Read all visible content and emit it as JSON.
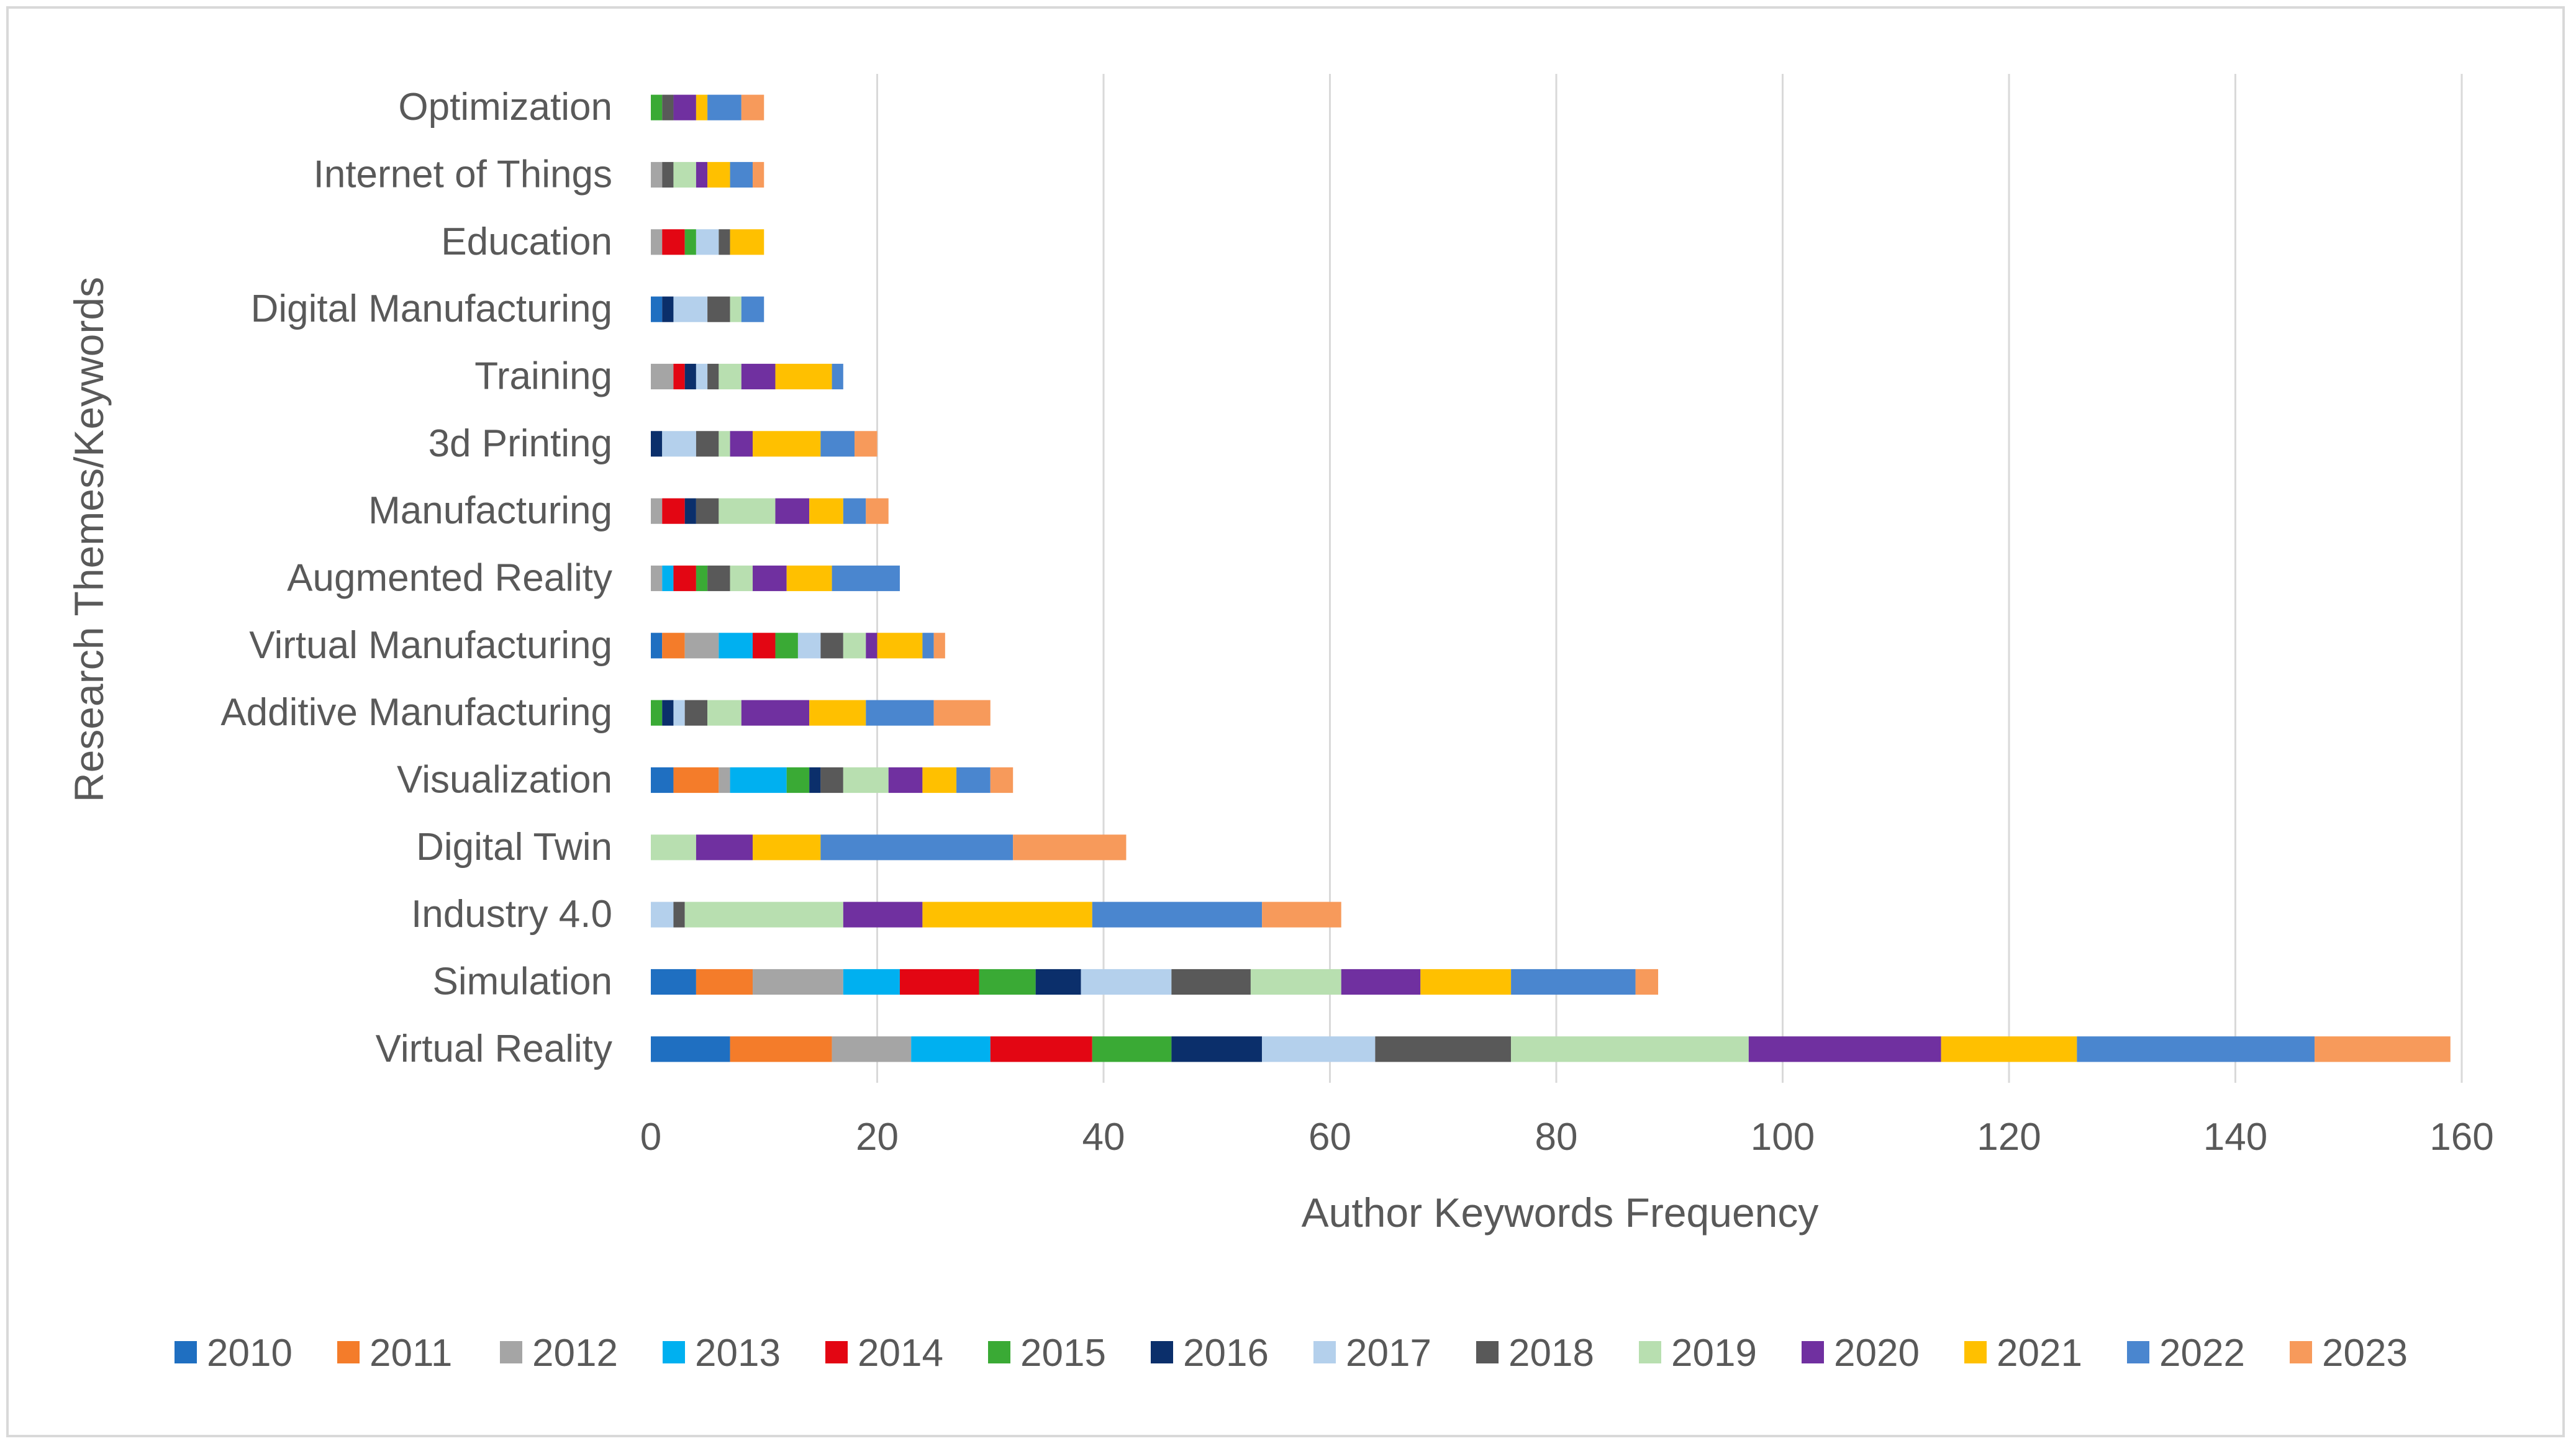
{
  "chart_data": {
    "type": "bar",
    "orientation": "horizontal",
    "stacked": true,
    "title": "",
    "xlabel": "Author Keywords Frequency",
    "ylabel": "Research Themes/Keywords",
    "xlim": [
      0,
      160
    ],
    "xticks": [
      0,
      20,
      40,
      60,
      80,
      100,
      120,
      140,
      160
    ],
    "grid": "vertical",
    "legend_position": "bottom",
    "categories": [
      "Virtual Reality",
      "Simulation",
      "Industry 4.0",
      "Digital Twin",
      "Visualization",
      "Additive Manufacturing",
      "Virtual Manufacturing",
      "Augmented Reality",
      "Manufacturing",
      "3d Printing",
      "Training",
      "Digital Manufacturing",
      "Education",
      "Internet of Things",
      "Optimization"
    ],
    "series": [
      {
        "name": "2010",
        "color": "#1f6fc1",
        "values": [
          7,
          4,
          0,
          0,
          2,
          0,
          1,
          0,
          0,
          0,
          0,
          1,
          0,
          0,
          0
        ]
      },
      {
        "name": "2011",
        "color": "#f47c2a",
        "values": [
          9,
          5,
          0,
          0,
          4,
          0,
          2,
          0,
          0,
          0,
          0,
          0,
          0,
          0,
          0
        ]
      },
      {
        "name": "2012",
        "color": "#a5a5a5",
        "values": [
          7,
          8,
          0,
          0,
          1,
          0,
          3,
          1,
          1,
          0,
          2,
          0,
          1,
          1,
          0
        ]
      },
      {
        "name": "2013",
        "color": "#00b0f0",
        "values": [
          7,
          5,
          0,
          0,
          5,
          0,
          3,
          1,
          0,
          0,
          0,
          0,
          0,
          0,
          0
        ]
      },
      {
        "name": "2014",
        "color": "#e30613",
        "values": [
          9,
          7,
          0,
          0,
          0,
          0,
          2,
          2,
          2,
          0,
          1,
          0,
          2,
          0,
          0
        ]
      },
      {
        "name": "2015",
        "color": "#3aaa35",
        "values": [
          7,
          5,
          0,
          0,
          2,
          1,
          2,
          1,
          0,
          0,
          0,
          0,
          1,
          0,
          1
        ]
      },
      {
        "name": "2016",
        "color": "#0b2f6b",
        "values": [
          8,
          4,
          0,
          0,
          1,
          1,
          0,
          0,
          1,
          1,
          1,
          1,
          0,
          0,
          0
        ]
      },
      {
        "name": "2017",
        "color": "#b4d0ec",
        "values": [
          10,
          8,
          2,
          0,
          0,
          1,
          2,
          0,
          0,
          3,
          1,
          3,
          2,
          0,
          0
        ]
      },
      {
        "name": "2018",
        "color": "#595959",
        "values": [
          12,
          7,
          1,
          0,
          2,
          2,
          2,
          2,
          2,
          2,
          1,
          2,
          1,
          1,
          1
        ]
      },
      {
        "name": "2019",
        "color": "#b8dfb0",
        "values": [
          21,
          8,
          14,
          4,
          4,
          3,
          2,
          2,
          5,
          1,
          2,
          1,
          0,
          2,
          0
        ]
      },
      {
        "name": "2020",
        "color": "#7030a0",
        "values": [
          17,
          7,
          7,
          5,
          3,
          6,
          1,
          3,
          3,
          2,
          3,
          0,
          0,
          1,
          2
        ]
      },
      {
        "name": "2021",
        "color": "#ffc000",
        "values": [
          12,
          8,
          15,
          6,
          3,
          5,
          4,
          4,
          3,
          6,
          5,
          0,
          3,
          2,
          1
        ]
      },
      {
        "name": "2022",
        "color": "#4a86cf",
        "values": [
          21,
          11,
          15,
          17,
          3,
          6,
          1,
          6,
          2,
          3,
          1,
          2,
          0,
          2,
          3
        ]
      },
      {
        "name": "2023",
        "color": "#f79a5b",
        "values": [
          12,
          2,
          7,
          10,
          2,
          5,
          1,
          0,
          2,
          2,
          0,
          0,
          0,
          1,
          2
        ]
      }
    ]
  }
}
